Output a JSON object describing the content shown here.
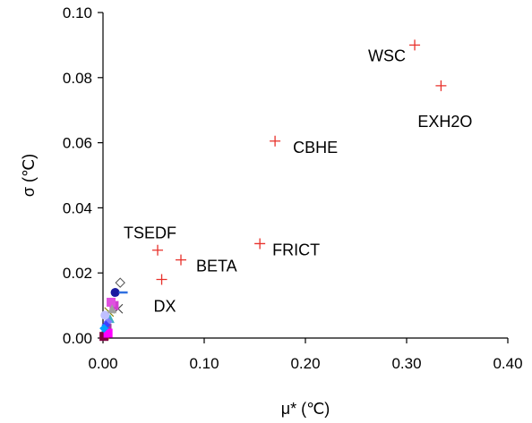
{
  "chart_data": {
    "type": "scatter",
    "xlabel": "μ* (℃)",
    "ylabel": "σ (℃)",
    "xlim": [
      0,
      0.4
    ],
    "ylim": [
      0,
      0.1
    ],
    "xticks": [
      "0.00",
      "0.10",
      "0.20",
      "0.30",
      "0.40"
    ],
    "yticks": [
      "0.00",
      "0.02",
      "0.04",
      "0.06",
      "0.08",
      "0.10"
    ],
    "grid": false,
    "marker_color": "#e8302a",
    "labeled_points": [
      {
        "label": "WSC",
        "x": 0.308,
        "y": 0.09
      },
      {
        "label": "EXH2O",
        "x": 0.334,
        "y": 0.0775
      },
      {
        "label": "CBHE",
        "x": 0.17,
        "y": 0.0605
      },
      {
        "label": "FRICT",
        "x": 0.155,
        "y": 0.029
      },
      {
        "label": "TSEDF",
        "x": 0.054,
        "y": 0.027
      },
      {
        "label": "BETA",
        "x": 0.077,
        "y": 0.024
      },
      {
        "label": "DX",
        "x": 0.058,
        "y": 0.018
      }
    ],
    "cluster_points": [
      {
        "x": 0.012,
        "y": 0.014,
        "marker": "circle",
        "color": "#1a1aa0"
      },
      {
        "x": 0.017,
        "y": 0.017,
        "marker": "diamond-open",
        "color": "#555555"
      },
      {
        "x": 0.015,
        "y": 0.009,
        "marker": "x",
        "color": "#444444"
      },
      {
        "x": 0.011,
        "y": 0.01,
        "marker": "square",
        "color": "#d040d0"
      },
      {
        "x": 0.008,
        "y": 0.011,
        "marker": "square",
        "color": "#e050e0"
      },
      {
        "x": 0.007,
        "y": 0.006,
        "marker": "triangle",
        "color": "#40b0c0"
      },
      {
        "x": 0.005,
        "y": 0.005,
        "marker": "diamond",
        "color": "#8080ff"
      },
      {
        "x": 0.006,
        "y": 0.008,
        "marker": "x",
        "color": "#808000"
      },
      {
        "x": 0.004,
        "y": 0.003,
        "marker": "square",
        "color": "#a040a0"
      },
      {
        "x": 0.003,
        "y": 0.002,
        "marker": "circle",
        "color": "#20a0a0"
      },
      {
        "x": 0.002,
        "y": 0.001,
        "marker": "triangle",
        "color": "#ff8000"
      },
      {
        "x": 0.003,
        "y": 0.004,
        "marker": "diamond",
        "color": "#4040ff"
      },
      {
        "x": 0.001,
        "y": 0.0005,
        "marker": "square",
        "color": "#800040"
      },
      {
        "x": 0.002,
        "y": 0.007,
        "marker": "circle",
        "color": "#c0c0ff"
      },
      {
        "x": 0.009,
        "y": 0.009,
        "marker": "triangle",
        "color": "#a0a0a0"
      },
      {
        "x": 0.005,
        "y": 0.0015,
        "marker": "square",
        "color": "#ff00ff"
      },
      {
        "x": 0.001,
        "y": 0.003,
        "marker": "diamond",
        "color": "#00a0ff"
      }
    ]
  }
}
